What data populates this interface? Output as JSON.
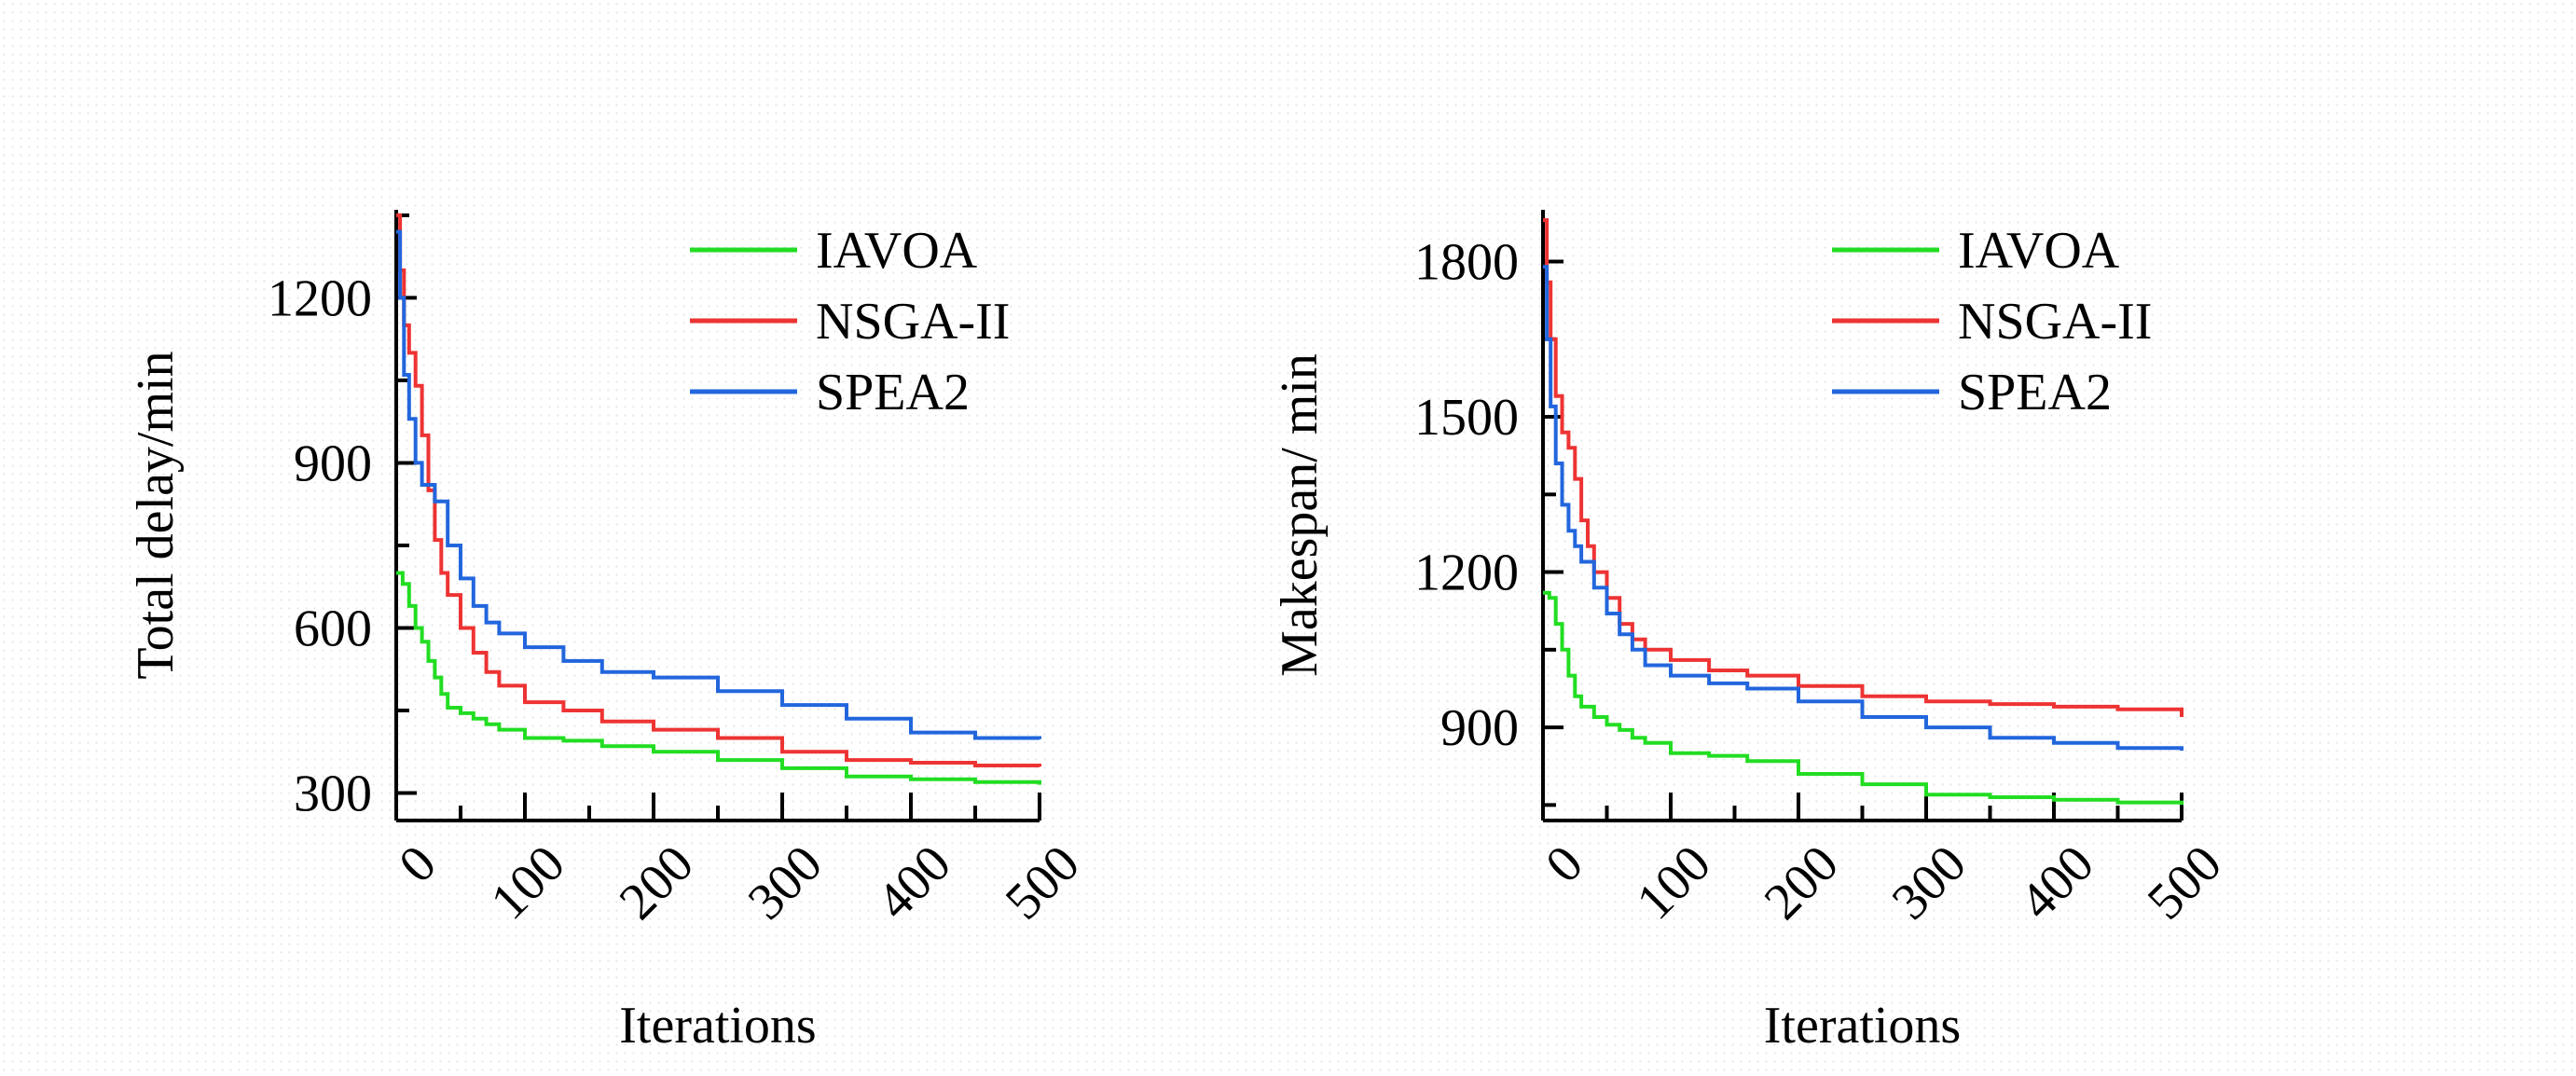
{
  "chart_data": [
    {
      "type": "line",
      "title": "",
      "xlabel": "Iterations",
      "ylabel": "Total delay/min",
      "xlim": [
        0,
        500
      ],
      "ylim": [
        250,
        1360
      ],
      "xticks": [
        0,
        100,
        200,
        300,
        400,
        500
      ],
      "xtick_labels": [
        "0",
        "100",
        "200",
        "300",
        "400",
        "500"
      ],
      "yticks": [
        300,
        600,
        900,
        1200
      ],
      "ytick_labels": [
        "300",
        "600",
        "900",
        "1200"
      ],
      "grid": false,
      "legend_position": "top-right",
      "series": [
        {
          "name": "IAVOA",
          "color": "#22dd22",
          "x": [
            0,
            5,
            10,
            15,
            20,
            25,
            30,
            35,
            40,
            50,
            60,
            70,
            80,
            100,
            130,
            160,
            200,
            250,
            300,
            350,
            400,
            450,
            500
          ],
          "y": [
            700,
            680,
            640,
            600,
            575,
            540,
            510,
            480,
            455,
            445,
            435,
            425,
            415,
            400,
            395,
            385,
            375,
            360,
            345,
            330,
            325,
            320,
            315
          ]
        },
        {
          "name": "NSGA-II",
          "color": "#ee3333",
          "x": [
            0,
            3,
            6,
            10,
            15,
            20,
            25,
            30,
            35,
            40,
            50,
            60,
            70,
            80,
            100,
            130,
            160,
            200,
            250,
            300,
            350,
            400,
            450,
            500
          ],
          "y": [
            1350,
            1250,
            1150,
            1100,
            1040,
            950,
            850,
            760,
            700,
            660,
            600,
            555,
            520,
            495,
            465,
            450,
            430,
            415,
            400,
            375,
            360,
            355,
            350,
            348
          ]
        },
        {
          "name": "SPEA2",
          "color": "#2266dd",
          "x": [
            0,
            3,
            6,
            10,
            15,
            20,
            30,
            40,
            50,
            60,
            70,
            80,
            100,
            130,
            160,
            200,
            250,
            300,
            350,
            400,
            450,
            500
          ],
          "y": [
            1320,
            1200,
            1060,
            980,
            900,
            860,
            830,
            750,
            690,
            640,
            610,
            590,
            565,
            540,
            520,
            510,
            485,
            460,
            435,
            410,
            400,
            398
          ]
        }
      ]
    },
    {
      "type": "line",
      "title": "",
      "xlabel": "Iterations",
      "ylabel": "Makespan/ min",
      "xlim": [
        0,
        500
      ],
      "ylim": [
        720,
        1900
      ],
      "xticks": [
        0,
        100,
        200,
        300,
        400,
        500
      ],
      "xtick_labels": [
        "0",
        "100",
        "200",
        "300",
        "400",
        "500"
      ],
      "yticks": [
        900,
        1200,
        1500,
        1800
      ],
      "ytick_labels": [
        "900",
        "1200",
        "1500",
        "1800"
      ],
      "grid": false,
      "legend_position": "top-right",
      "series": [
        {
          "name": "IAVOA",
          "color": "#22dd22",
          "x": [
            0,
            5,
            10,
            15,
            20,
            25,
            30,
            40,
            50,
            60,
            70,
            80,
            100,
            130,
            160,
            200,
            250,
            300,
            350,
            400,
            450,
            500
          ],
          "y": [
            1160,
            1150,
            1100,
            1050,
            1000,
            960,
            940,
            920,
            905,
            895,
            880,
            870,
            850,
            845,
            835,
            810,
            790,
            770,
            765,
            760,
            755,
            750
          ]
        },
        {
          "name": "NSGA-II",
          "color": "#ee3333",
          "x": [
            0,
            3,
            6,
            10,
            15,
            20,
            25,
            30,
            35,
            40,
            50,
            60,
            70,
            80,
            100,
            130,
            160,
            200,
            250,
            300,
            350,
            400,
            450,
            500
          ],
          "y": [
            1880,
            1760,
            1650,
            1540,
            1470,
            1440,
            1380,
            1300,
            1250,
            1200,
            1150,
            1100,
            1070,
            1050,
            1030,
            1010,
            1000,
            980,
            960,
            950,
            945,
            940,
            935,
            920
          ]
        },
        {
          "name": "SPEA2",
          "color": "#2266dd",
          "x": [
            0,
            3,
            6,
            10,
            15,
            20,
            25,
            30,
            40,
            50,
            60,
            70,
            80,
            100,
            130,
            160,
            200,
            250,
            300,
            350,
            400,
            450,
            500
          ],
          "y": [
            1790,
            1650,
            1520,
            1410,
            1330,
            1280,
            1250,
            1220,
            1170,
            1120,
            1080,
            1050,
            1020,
            1000,
            985,
            975,
            950,
            920,
            900,
            880,
            870,
            860,
            855
          ]
        }
      ]
    }
  ]
}
